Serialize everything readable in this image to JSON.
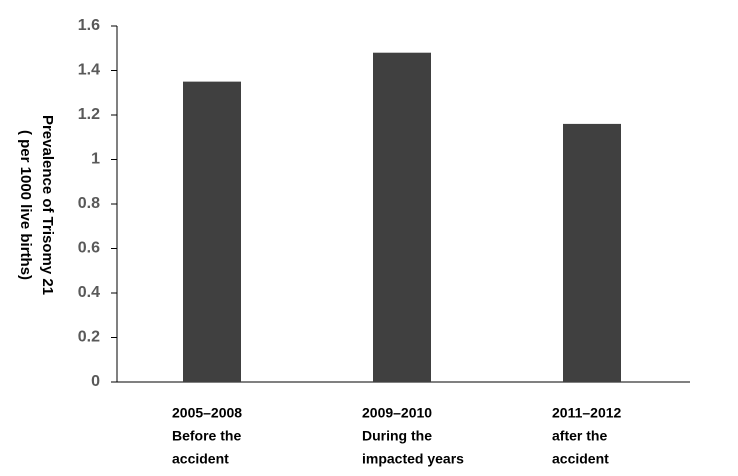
{
  "chart_data": {
    "type": "bar",
    "y_label": [
      "Prevalence of Trisomy 21",
      "( per 1000 live births)"
    ],
    "categories": [
      [
        "2005–2008",
        "Before the",
        "accident"
      ],
      [
        "2009–2010",
        "During the",
        "impacted years"
      ],
      [
        "2011–2012",
        "after the",
        "accident"
      ]
    ],
    "values": [
      1.35,
      1.48,
      1.16
    ],
    "color": "#404040",
    "ylim": [
      0,
      1.6
    ],
    "yticks": [
      0,
      0.2,
      0.4,
      0.6,
      0.8,
      1,
      1.2,
      1.4,
      1.6
    ],
    "grid": false
  }
}
